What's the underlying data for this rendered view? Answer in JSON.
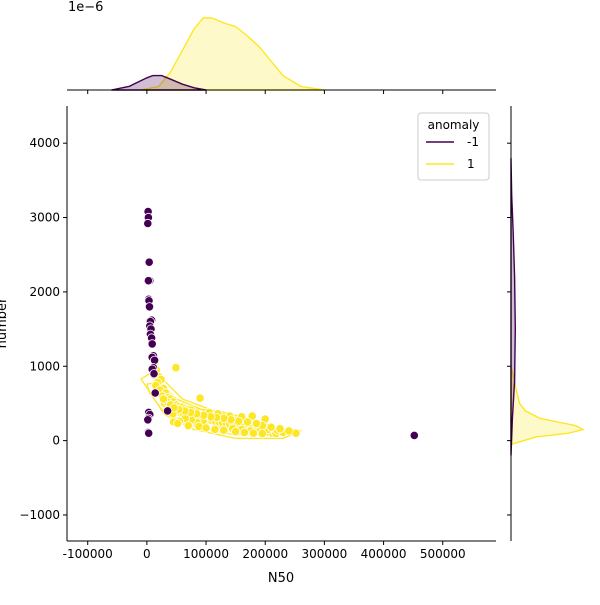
{
  "chart_data": {
    "type": "scatter",
    "xlabel": "N50",
    "ylabel": "number",
    "xlim": [
      -135000,
      590000
    ],
    "ylim": [
      -1350,
      4500
    ],
    "xticks": [
      -100000,
      0,
      100000,
      200000,
      300000,
      400000,
      500000
    ],
    "yticks": [
      -1000,
      0,
      1000,
      2000,
      3000,
      4000
    ],
    "top_axis_offset_label": "1e−6",
    "legend": {
      "title": "anomaly",
      "placement": "top-right",
      "entries": [
        {
          "label": "-1",
          "color": "#440154"
        },
        {
          "label": "1",
          "color": "#fde725"
        }
      ]
    },
    "series": [
      {
        "name": "-1",
        "color": "#440154",
        "points": [
          [
            2000,
            3080
          ],
          [
            2500,
            3000
          ],
          [
            1500,
            2920
          ],
          [
            4000,
            2400
          ],
          [
            5000,
            2150
          ],
          [
            2500,
            2150
          ],
          [
            3000,
            1900
          ],
          [
            3500,
            1880
          ],
          [
            4500,
            1800
          ],
          [
            8000,
            1620
          ],
          [
            6000,
            1600
          ],
          [
            5000,
            1540
          ],
          [
            7000,
            1500
          ],
          [
            6000,
            1430
          ],
          [
            8000,
            1380
          ],
          [
            9000,
            1300
          ],
          [
            11000,
            1140
          ],
          [
            9000,
            1120
          ],
          [
            13000,
            1080
          ],
          [
            11000,
            980
          ],
          [
            9000,
            960
          ],
          [
            12000,
            900
          ],
          [
            14000,
            640
          ],
          [
            3000,
            380
          ],
          [
            5000,
            350
          ],
          [
            2500,
            300
          ],
          [
            1500,
            280
          ],
          [
            2000,
            110
          ],
          [
            3000,
            100
          ],
          [
            35000,
            400
          ],
          [
            452000,
            70
          ]
        ]
      },
      {
        "name": "1",
        "color": "#fde725",
        "points": [
          [
            10000,
            1150
          ],
          [
            14000,
            1060
          ],
          [
            16000,
            950
          ],
          [
            49000,
            980
          ],
          [
            12000,
            880
          ],
          [
            20000,
            860
          ],
          [
            24000,
            820
          ],
          [
            18000,
            780
          ],
          [
            15000,
            740
          ],
          [
            28000,
            700
          ],
          [
            22000,
            680
          ],
          [
            32000,
            640
          ],
          [
            26000,
            600
          ],
          [
            36000,
            580
          ],
          [
            40000,
            560
          ],
          [
            45000,
            520
          ],
          [
            30000,
            500
          ],
          [
            50000,
            480
          ],
          [
            55000,
            460
          ],
          [
            60000,
            450
          ],
          [
            65000,
            430
          ],
          [
            70000,
            420
          ],
          [
            75000,
            410
          ],
          [
            90000,
            570
          ],
          [
            38000,
            450
          ],
          [
            42000,
            420
          ],
          [
            48000,
            400
          ],
          [
            53000,
            380
          ],
          [
            58000,
            370
          ],
          [
            62000,
            360
          ],
          [
            68000,
            350
          ],
          [
            72000,
            340
          ],
          [
            78000,
            330
          ],
          [
            82000,
            320
          ],
          [
            86000,
            310
          ],
          [
            92000,
            300
          ],
          [
            98000,
            290
          ],
          [
            104000,
            280
          ],
          [
            110000,
            270
          ],
          [
            116000,
            260
          ],
          [
            122000,
            250
          ],
          [
            128000,
            240
          ],
          [
            134000,
            230
          ],
          [
            140000,
            220
          ],
          [
            146000,
            210
          ],
          [
            152000,
            200
          ],
          [
            158000,
            190
          ],
          [
            164000,
            180
          ],
          [
            170000,
            170
          ],
          [
            176000,
            160
          ],
          [
            182000,
            150
          ],
          [
            188000,
            140
          ],
          [
            194000,
            130
          ],
          [
            200000,
            120
          ],
          [
            206000,
            110
          ],
          [
            212000,
            100
          ],
          [
            218000,
            95
          ],
          [
            230000,
            110
          ],
          [
            252000,
            100
          ],
          [
            178000,
            330
          ],
          [
            200000,
            290
          ],
          [
            160000,
            320
          ],
          [
            140000,
            330
          ],
          [
            120000,
            360
          ],
          [
            105000,
            380
          ],
          [
            95000,
            260
          ],
          [
            85000,
            240
          ],
          [
            75000,
            280
          ],
          [
            65000,
            300
          ],
          [
            55000,
            260
          ],
          [
            45000,
            250
          ],
          [
            52000,
            230
          ],
          [
            70000,
            200
          ],
          [
            88000,
            190
          ],
          [
            100000,
            170
          ],
          [
            115000,
            150
          ],
          [
            130000,
            140
          ],
          [
            145000,
            160
          ],
          [
            160000,
            150
          ],
          [
            175000,
            130
          ],
          [
            190000,
            120
          ],
          [
            205000,
            150
          ],
          [
            220000,
            140
          ],
          [
            210000,
            180
          ],
          [
            195000,
            200
          ],
          [
            185000,
            230
          ],
          [
            170000,
            250
          ],
          [
            155000,
            260
          ],
          [
            142000,
            280
          ],
          [
            130000,
            300
          ],
          [
            118000,
            310
          ],
          [
            108000,
            320
          ],
          [
            96000,
            340
          ],
          [
            84000,
            360
          ],
          [
            74000,
            380
          ],
          [
            64000,
            400
          ],
          [
            54000,
            420
          ],
          [
            44000,
            360
          ],
          [
            34000,
            520
          ],
          [
            28000,
            560
          ],
          [
            40000,
            480
          ],
          [
            46000,
            440
          ],
          [
            150000,
            120
          ],
          [
            165000,
            110
          ],
          [
            180000,
            100
          ],
          [
            195000,
            95
          ],
          [
            225000,
            160
          ],
          [
            240000,
            130
          ]
        ]
      }
    ],
    "kde_contours": [
      {
        "series": "1",
        "color": "#fde725",
        "paths": [
          [
            [
              -10000,
              830
            ],
            [
              5000,
              900
            ],
            [
              30000,
              800
            ],
            [
              60000,
              560
            ],
            [
              120000,
              380
            ],
            [
              200000,
              200
            ],
            [
              260000,
              130
            ],
            [
              230000,
              30
            ],
            [
              150000,
              30
            ],
            [
              80000,
              150
            ],
            [
              30000,
              350
            ],
            [
              5000,
              650
            ],
            [
              -10000,
              830
            ]
          ],
          [
            [
              0,
              760
            ],
            [
              20000,
              780
            ],
            [
              50000,
              560
            ],
            [
              110000,
              360
            ],
            [
              190000,
              200
            ],
            [
              240000,
              120
            ],
            [
              200000,
              70
            ],
            [
              140000,
              90
            ],
            [
              70000,
              210
            ],
            [
              25000,
              420
            ],
            [
              5000,
              640
            ],
            [
              0,
              760
            ]
          ],
          [
            [
              60000,
              440
            ],
            [
              120000,
              400
            ],
            [
              170000,
              300
            ],
            [
              220000,
              180
            ],
            [
              230000,
              120
            ],
            [
              190000,
              110
            ],
            [
              130000,
              160
            ],
            [
              80000,
              300
            ],
            [
              60000,
              440
            ]
          ],
          [
            [
              100000,
              300
            ],
            [
              150000,
              280
            ],
            [
              200000,
              200
            ],
            [
              210000,
              150
            ],
            [
              170000,
              140
            ],
            [
              120000,
              190
            ],
            [
              100000,
              300
            ]
          ],
          [
            [
              130000,
              220
            ],
            [
              170000,
              220
            ],
            [
              190000,
              180
            ],
            [
              160000,
              170
            ],
            [
              130000,
              220
            ]
          ]
        ]
      }
    ],
    "marginal_top": {
      "series": [
        {
          "name": "-1",
          "color": "#440154",
          "x": [
            -60000,
            -30000,
            -10000,
            0,
            10000,
            25000,
            40000,
            60000,
            80000,
            100000
          ],
          "density": [
            0.0,
            0.05,
            0.13,
            0.17,
            0.2,
            0.2,
            0.15,
            0.08,
            0.03,
            0.0
          ]
        },
        {
          "name": "1",
          "color": "#fde725",
          "x": [
            -10000,
            20000,
            40000,
            60000,
            80000,
            95000,
            110000,
            130000,
            150000,
            170000,
            190000,
            210000,
            230000,
            260000,
            300000
          ],
          "density": [
            0.0,
            0.05,
            0.25,
            0.55,
            0.85,
            1.0,
            1.0,
            0.93,
            0.88,
            0.75,
            0.6,
            0.4,
            0.2,
            0.05,
            0.0
          ]
        }
      ]
    },
    "marginal_right": {
      "series": [
        {
          "name": "-1",
          "color": "#440154",
          "y": [
            -200,
            300,
            800,
            1500,
            2200,
            2800,
            3300,
            3800
          ],
          "density": [
            0.0,
            0.02,
            0.05,
            0.06,
            0.05,
            0.03,
            0.01,
            0.0
          ]
        },
        {
          "name": "1",
          "color": "#fde725",
          "y": [
            -50,
            50,
            100,
            150,
            200,
            250,
            300,
            400,
            500,
            650,
            800,
            1000
          ],
          "density": [
            0.0,
            0.35,
            0.8,
            1.0,
            0.9,
            0.65,
            0.4,
            0.2,
            0.12,
            0.08,
            0.05,
            0.0
          ]
        }
      ]
    }
  }
}
